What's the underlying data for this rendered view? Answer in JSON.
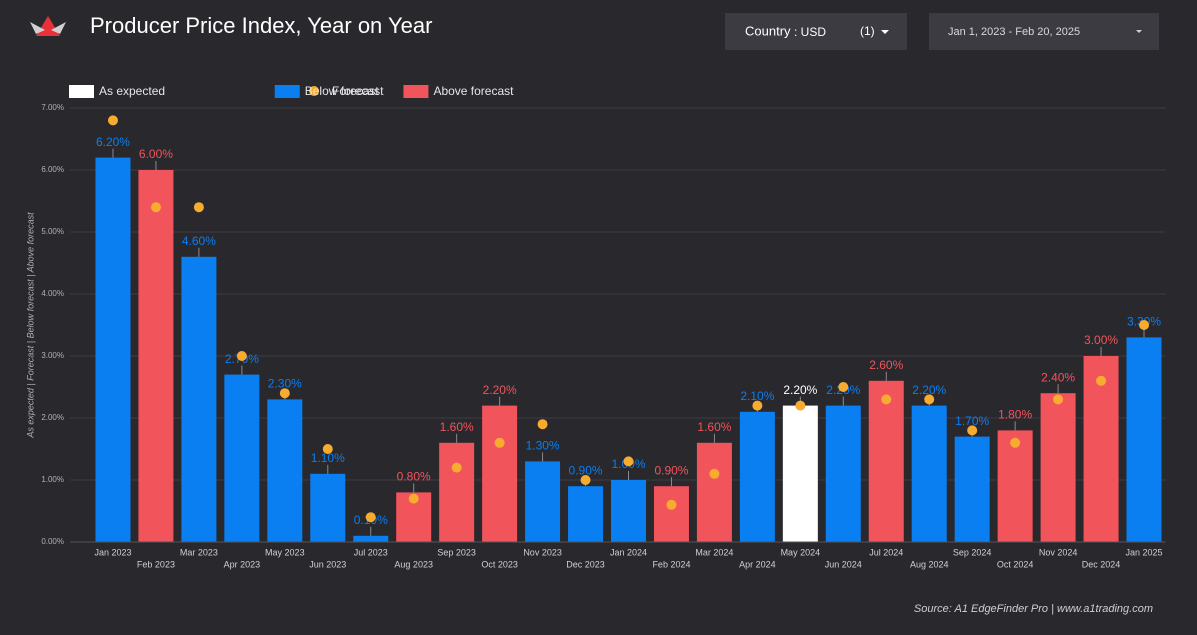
{
  "chart_data": {
    "type": "bar",
    "title": "Producer Price Index, Year on Year",
    "y_label": "As expected | Forecast | Below forecast | Above forecast",
    "categories": [
      "Jan 2023",
      "Feb 2023",
      "Mar 2023",
      "Apr 2023",
      "May 2023",
      "Jun 2023",
      "Jul 2023",
      "Aug 2023",
      "Sep 2023",
      "Oct 2023",
      "Nov 2023",
      "Dec 2023",
      "Jan 2024",
      "Feb 2024",
      "Mar 2024",
      "Apr 2024",
      "May 2024",
      "Jun 2024",
      "Jul 2024",
      "Aug 2024",
      "Sep 2024",
      "Oct 2024",
      "Nov 2024",
      "Dec 2024",
      "Jan 2025"
    ],
    "series": [
      {
        "name": "As expected",
        "mark": "bar",
        "color": "#ffffff",
        "values": [
          null,
          null,
          null,
          null,
          null,
          null,
          null,
          null,
          null,
          null,
          null,
          null,
          null,
          null,
          null,
          null,
          2.2,
          null,
          null,
          null,
          null,
          null,
          null,
          null,
          null
        ],
        "value_labels": [
          null,
          null,
          null,
          null,
          null,
          null,
          null,
          null,
          null,
          null,
          null,
          null,
          null,
          null,
          null,
          null,
          "2.20%",
          null,
          null,
          null,
          null,
          null,
          null,
          null,
          null
        ]
      },
      {
        "name": "Forecast",
        "mark": "point",
        "color": "#f7ac2f",
        "values": [
          6.8,
          5.4,
          5.4,
          3.0,
          2.4,
          1.5,
          0.4,
          0.7,
          1.2,
          1.6,
          1.9,
          1.0,
          1.3,
          0.6,
          1.1,
          2.2,
          2.2,
          2.5,
          2.3,
          2.3,
          1.8,
          1.6,
          2.3,
          2.6,
          3.5
        ]
      },
      {
        "name": "Below forecast",
        "mark": "bar",
        "color": "#0a7ff2",
        "values": [
          6.2,
          null,
          4.6,
          2.7,
          2.3,
          1.1,
          0.1,
          null,
          null,
          null,
          1.3,
          0.9,
          1.0,
          null,
          null,
          2.1,
          null,
          2.2,
          null,
          2.2,
          1.7,
          null,
          null,
          null,
          3.3
        ],
        "value_labels": [
          "6.20%",
          null,
          "4.60%",
          "2.70%",
          "2.30%",
          "1.10%",
          "0.10%",
          null,
          null,
          null,
          "1.30%",
          "0.90%",
          "1.00%",
          null,
          null,
          "2.10%",
          null,
          "2.20%",
          null,
          "2.20%",
          "1.70%",
          null,
          null,
          null,
          "3.30%"
        ]
      },
      {
        "name": "Above forecast",
        "mark": "bar",
        "color": "#f2545b",
        "values": [
          null,
          6.0,
          null,
          null,
          null,
          null,
          null,
          0.8,
          1.6,
          2.2,
          null,
          null,
          null,
          0.9,
          1.6,
          null,
          null,
          null,
          2.6,
          null,
          null,
          1.8,
          2.4,
          3.0,
          null
        ],
        "value_labels": [
          null,
          "6.00%",
          null,
          null,
          null,
          null,
          null,
          "0.80%",
          "1.60%",
          "2.20%",
          null,
          null,
          null,
          "0.90%",
          "1.60%",
          null,
          null,
          null,
          "2.60%",
          null,
          null,
          "1.80%",
          "2.40%",
          "3.00%",
          null
        ]
      }
    ],
    "ylim": [
      0,
      7
    ],
    "yticks": [
      {
        "value": 0,
        "label": "0.00%"
      },
      {
        "value": 1,
        "label": "1.00%"
      },
      {
        "value": 2,
        "label": "2.00%"
      },
      {
        "value": 3,
        "label": "3.00%"
      },
      {
        "value": 4,
        "label": "4.00%"
      },
      {
        "value": 5,
        "label": "5.00%"
      },
      {
        "value": 6,
        "label": "6.00%"
      },
      {
        "value": 7,
        "label": "7.00%"
      }
    ],
    "grid": true,
    "legend": "top-left",
    "source": "Source: A1 EdgeFinder Pro | www.a1trading.com"
  },
  "controls": {
    "country_label": "Country",
    "country_value": ": USD",
    "country_count": "(1)",
    "date_range": "Jan 1, 2023 - Feb 20, 2025"
  }
}
